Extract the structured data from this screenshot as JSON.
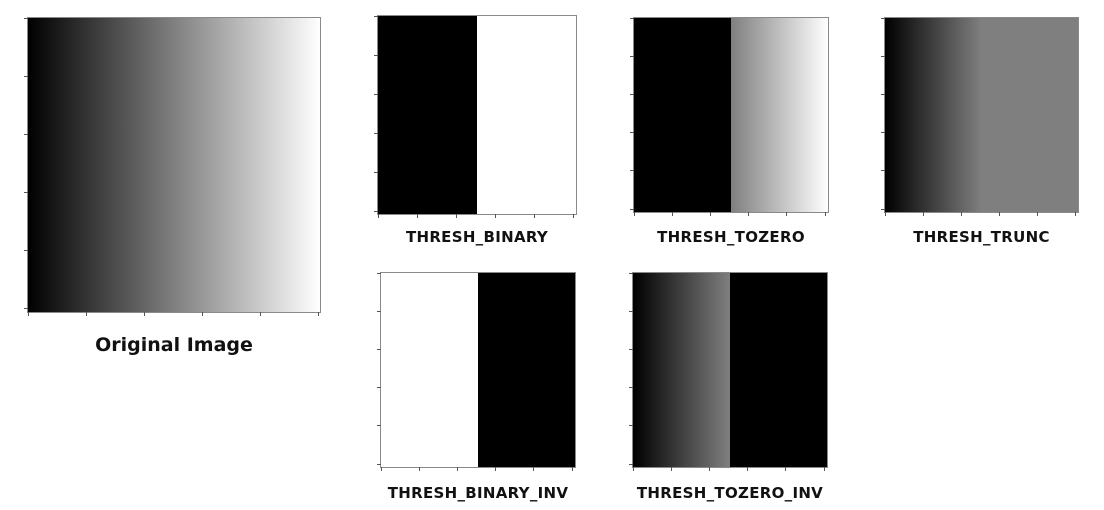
{
  "panels": {
    "original": {
      "caption": "Original Image",
      "fill": "linear-gradient(to right, #000000 0%, #ffffff 100%)"
    },
    "binary": {
      "caption": "THRESH_BINARY",
      "fill": "linear-gradient(to right, #000000 0%, #000000 50%, #ffffff 50%, #ffffff 100%)"
    },
    "tozero": {
      "caption": "THRESH_TOZERO",
      "fill": "linear-gradient(to right, #000000 0%, #000000 50%, #7f7f7f 50%, #ffffff 100%)"
    },
    "trunc": {
      "caption": "THRESH_TRUNC",
      "fill": "linear-gradient(to right, #000000 0%, #7f7f7f 50%, #7f7f7f 100%)"
    },
    "binary_inv": {
      "caption": "THRESH_BINARY_INV",
      "fill": "linear-gradient(to right, #ffffff 0%, #ffffff 50%, #000000 50%, #000000 100%)"
    },
    "tozero_inv": {
      "caption": "THRESH_TOZERO_INV",
      "fill": "linear-gradient(to right, #000000 0%, #7f7f7f 50%, #000000 50%, #000000 100%)"
    }
  }
}
